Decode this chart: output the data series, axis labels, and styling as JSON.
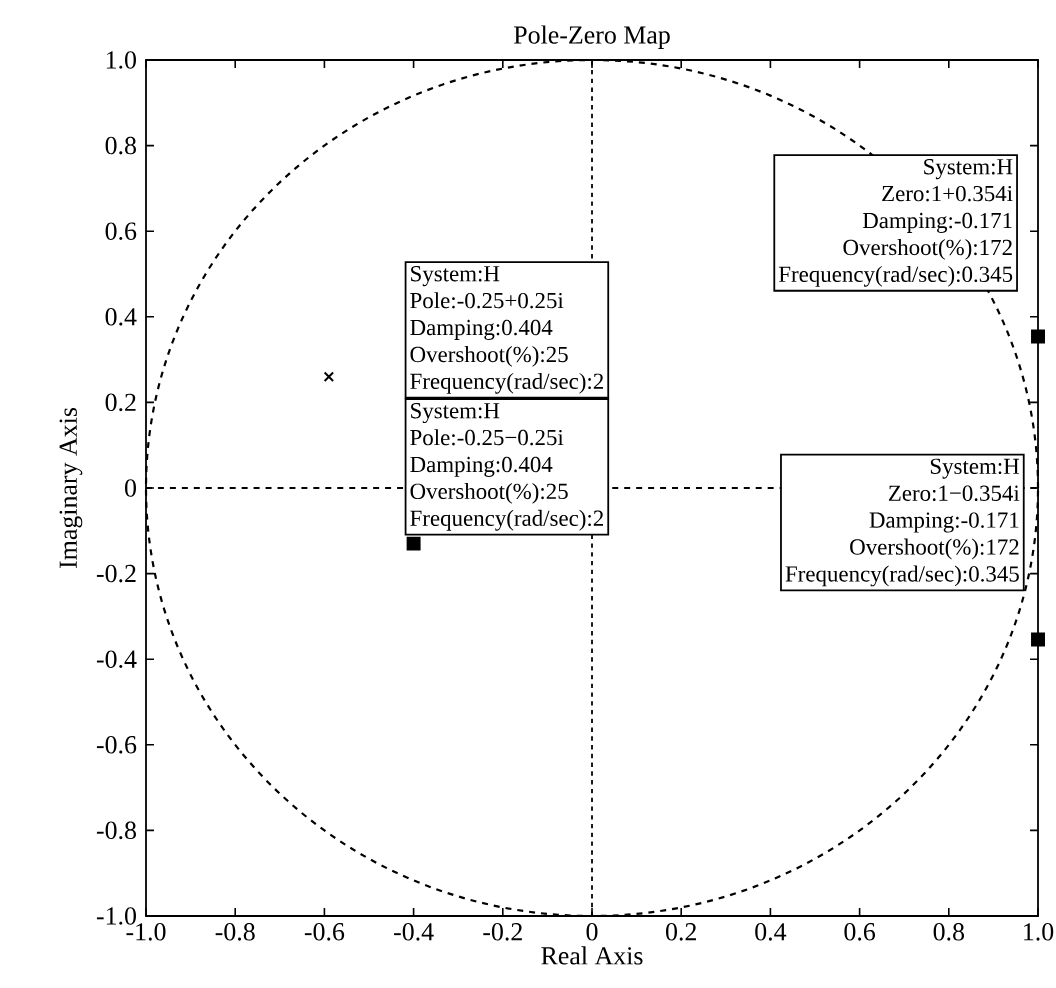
{
  "chart_data": {
    "type": "scatter",
    "title": "Pole-Zero Map",
    "xlabel": "Real Axis",
    "ylabel": "Imaginary Axis",
    "xlim": [
      -1,
      1
    ],
    "ylim": [
      -1,
      1
    ],
    "xticks": [
      {
        "value": -1,
        "label": "-1.0"
      },
      -0.8,
      -0.6,
      -0.4,
      -0.2,
      0,
      0.2,
      0.4,
      0.6,
      0.8,
      {
        "value": 1,
        "label": "1.0"
      }
    ],
    "yticks": [
      {
        "value": -1,
        "label": "-1.0"
      },
      -0.8,
      -0.6,
      -0.4,
      -0.2,
      0,
      0.2,
      0.4,
      0.6,
      0.8,
      {
        "value": 1,
        "label": "1.0"
      }
    ],
    "grid": false,
    "ref_lines": [
      {
        "axis": "x",
        "value": 0,
        "line_style": "dotted",
        "color": "#000000"
      },
      {
        "axis": "y",
        "value": 0,
        "line_style": "dashed",
        "color": "#000000"
      }
    ],
    "series": [
      {
        "color": "#000000",
        "marker": "cross",
        "x": [
          -0.59
        ],
        "values": [
          0.26
        ]
      },
      {
        "color": "#000000",
        "marker": "square",
        "x": [
          -0.4,
          1,
          1
        ],
        "values": [
          -0.13,
          0.354,
          -0.354
        ]
      }
    ],
    "annotations": [
      "System:H",
      "Pole:-0.25+0.25i",
      "Damping:0.404",
      "Overshoot(%):25",
      "Frequency(rad/sec):2",
      "System:H",
      "Pole:-0.25−0.25i",
      "Damping:0.404",
      "Overshoot(%):25",
      "Frequency(rad/sec):2",
      "System:H",
      "Zero:1+0.354i",
      "Damping:-0.171",
      "Overshoot(%):172",
      "Frequency(rad/sec):0.345",
      "System:H",
      "Zero:1−0.354i",
      "Damping:-0.171",
      "Overshoot(%):172",
      "Frequency(rad/sec):0.345"
    ]
  }
}
